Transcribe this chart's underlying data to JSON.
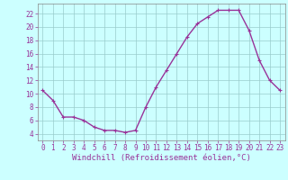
{
  "hours": [
    0,
    1,
    2,
    3,
    4,
    5,
    6,
    7,
    8,
    9,
    10,
    11,
    12,
    13,
    14,
    15,
    16,
    17,
    18,
    19,
    20,
    21,
    22,
    23
  ],
  "values": [
    10.5,
    9.0,
    6.5,
    6.5,
    6.0,
    5.0,
    4.5,
    4.5,
    4.2,
    4.5,
    8.0,
    11.0,
    13.5,
    16.0,
    18.5,
    20.5,
    21.5,
    22.5,
    22.5,
    22.5,
    19.5,
    15.0,
    12.0,
    10.5
  ],
  "line_color": "#993399",
  "marker": "+",
  "bg_color": "#ccffff",
  "grid_color": "#99cccc",
  "xlabel": "Windchill (Refroidissement éolien,°C)",
  "xlabel_color": "#993399",
  "ylim": [
    3.0,
    23.5
  ],
  "yticks": [
    4,
    6,
    8,
    10,
    12,
    14,
    16,
    18,
    20,
    22
  ],
  "xticks": [
    0,
    1,
    2,
    3,
    4,
    5,
    6,
    7,
    8,
    9,
    10,
    11,
    12,
    13,
    14,
    15,
    16,
    17,
    18,
    19,
    20,
    21,
    22,
    23
  ],
  "tick_label_fontsize": 5.5,
  "xlabel_fontsize": 6.5,
  "line_width": 1.0,
  "marker_size": 3.5,
  "marker_edge_width": 0.8
}
